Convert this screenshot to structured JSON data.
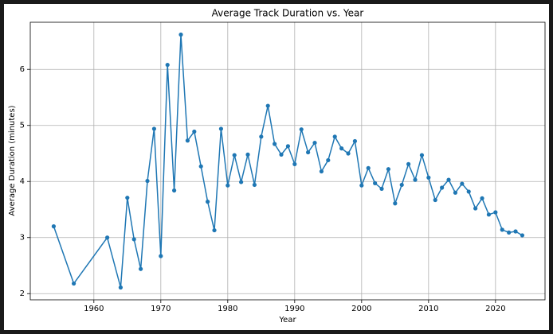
{
  "chart_data": {
    "type": "line",
    "title": "Average Track Duration vs. Year",
    "x_label": "Year",
    "y_label": "Average Duration (minutes)",
    "x": [
      1954,
      1957,
      1962,
      1964,
      1965,
      1966,
      1967,
      1968,
      1969,
      1970,
      1971,
      1972,
      1973,
      1974,
      1975,
      1976,
      1977,
      1978,
      1979,
      1980,
      1981,
      1982,
      1983,
      1984,
      1985,
      1986,
      1987,
      1988,
      1989,
      1990,
      1991,
      1992,
      1993,
      1994,
      1995,
      1996,
      1997,
      1998,
      1999,
      2000,
      2001,
      2002,
      2003,
      2004,
      2005,
      2006,
      2007,
      2008,
      2009,
      2010,
      2011,
      2012,
      2013,
      2014,
      2015,
      2016,
      2017,
      2018,
      2019,
      2020,
      2021,
      2022,
      2023,
      2024
    ],
    "series": [
      {
        "name": "Average Duration",
        "color": "#1f77b4",
        "values": [
          3.2,
          2.18,
          3.0,
          2.11,
          3.71,
          2.97,
          2.44,
          4.01,
          4.94,
          2.67,
          6.08,
          3.84,
          6.62,
          4.73,
          4.89,
          4.27,
          3.64,
          3.13,
          4.94,
          3.93,
          4.47,
          3.99,
          4.48,
          3.94,
          4.8,
          5.35,
          4.67,
          4.48,
          4.63,
          4.31,
          4.93,
          4.52,
          4.69,
          4.18,
          4.38,
          4.8,
          4.59,
          4.5,
          4.72,
          3.93,
          4.24,
          3.97,
          3.87,
          4.22,
          3.61,
          3.94,
          4.31,
          4.03,
          4.47,
          4.07,
          3.67,
          3.89,
          4.03,
          3.8,
          3.96,
          3.82,
          3.52,
          3.7,
          3.41,
          3.45,
          3.14,
          3.09,
          3.11,
          3.04
        ]
      }
    ],
    "xlim": [
      1950.5,
      2027.4
    ],
    "xticks": [
      1960,
      1970,
      1980,
      1990,
      2000,
      2010,
      2020
    ],
    "ylim": [
      1.89,
      6.84
    ],
    "yticks": [
      2,
      3,
      4,
      5,
      6
    ],
    "grid": true
  }
}
